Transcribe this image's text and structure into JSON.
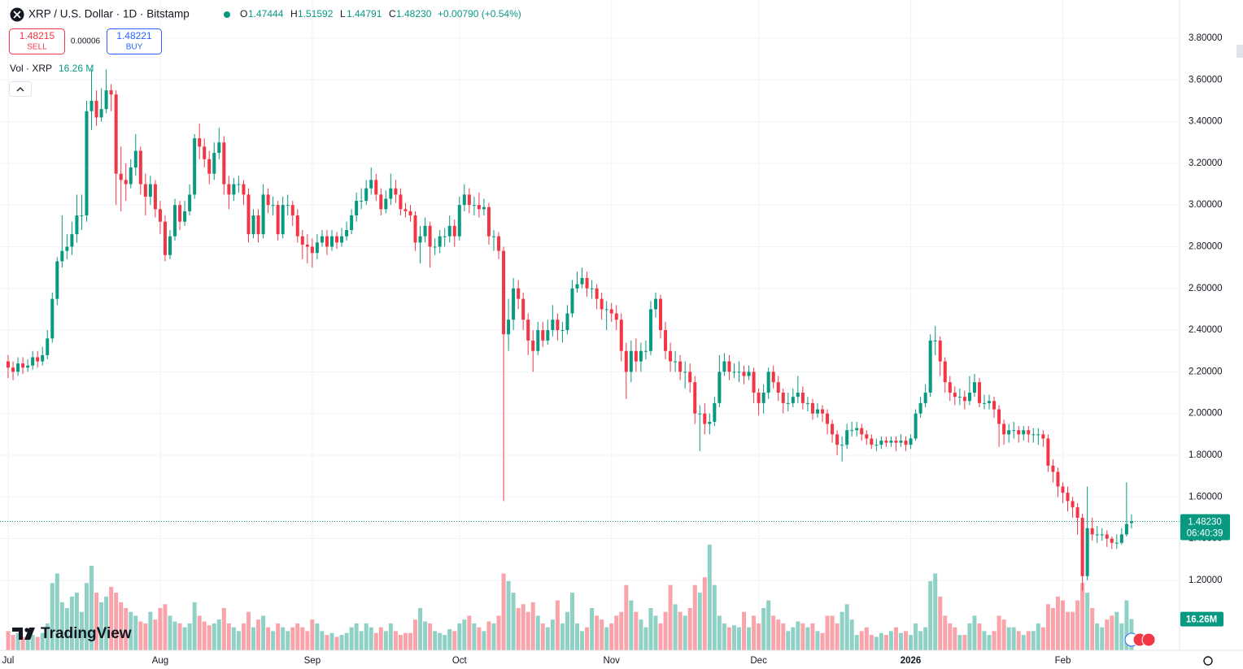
{
  "header": {
    "symbol": "XRP / U.S. Dollar · 1D · Bitstamp",
    "o": "O",
    "open": "1.47444",
    "h": "H",
    "high": "1.51592",
    "l": "L",
    "low": "1.44791",
    "c": "C",
    "close": "1.48230",
    "change": "+0.00790 (+0.54%)",
    "sell_price": "1.48215",
    "sell": "SELL",
    "spread": "0.00006",
    "buy_price": "1.48221",
    "buy": "BUY",
    "vol_title": "Vol · XRP",
    "vol_value": "16.26 M",
    "brand": "TradingView"
  },
  "chart_data": {
    "type": "candlestick",
    "open": [
      2.25,
      2.22,
      2.2,
      2.24,
      2.22,
      2.23,
      2.27,
      2.25,
      2.28,
      2.36,
      2.55,
      2.73,
      2.78,
      2.8,
      2.86,
      2.95,
      2.95,
      3.45,
      3.5,
      3.42,
      3.46,
      3.55,
      3.53,
      3.15,
      3.12,
      3.1,
      3.18,
      3.26,
      3.1,
      3.04,
      3.1,
      2.98,
      2.92,
      2.76,
      2.85,
      3.0,
      2.92,
      2.97,
      3.05,
      3.32,
      3.28,
      3.22,
      3.15,
      3.25,
      3.3,
      3.1,
      3.05,
      3.1,
      3.1,
      3.05,
      2.86,
      2.95,
      2.86,
      3.05,
      3.0,
      3.0,
      2.86,
      3.0,
      3.0,
      2.95,
      2.85,
      2.81,
      2.8,
      2.77,
      2.82,
      2.85,
      2.8,
      2.85,
      2.82,
      2.85,
      2.88,
      2.95,
      3.02,
      3.02,
      3.08,
      3.12,
      3.05,
      2.98,
      3.03,
      3.08,
      3.05,
      2.98,
      2.97,
      2.95,
      2.82,
      2.85,
      2.9,
      2.8,
      2.8,
      2.85,
      2.85,
      2.9,
      2.85,
      3.0,
      3.05,
      3.0,
      3.0,
      2.98,
      2.99,
      2.85,
      2.85,
      2.78,
      2.38,
      2.45,
      2.6,
      2.55,
      2.45,
      2.35,
      2.3,
      2.4,
      2.35,
      2.4,
      2.45,
      2.4,
      2.4,
      2.48,
      2.6,
      2.62,
      2.65,
      2.6,
      2.6,
      2.55,
      2.5,
      2.5,
      2.48,
      2.45,
      2.3,
      2.2,
      2.3,
      2.25,
      2.3,
      2.3,
      2.5,
      2.55,
      2.4,
      2.3,
      2.25,
      2.25,
      2.2,
      2.2,
      2.15,
      2.0,
      2.0,
      1.95,
      1.96,
      2.05,
      2.2,
      2.25,
      2.2,
      2.2,
      2.2,
      2.18,
      2.2,
      2.1,
      2.05,
      2.1,
      2.2,
      2.15,
      2.1,
      2.05,
      2.05,
      2.08,
      2.1,
      2.05,
      2.05,
      2.0,
      2.02,
      2.0,
      1.95,
      1.9,
      1.85,
      1.85,
      1.92,
      1.92,
      1.93,
      1.9,
      1.88,
      1.85,
      1.85,
      1.87,
      1.86,
      1.87,
      1.86,
      1.87,
      1.85,
      1.88,
      2.0,
      2.05,
      2.1,
      2.35,
      2.35,
      2.25,
      2.15,
      2.1,
      2.08,
      2.08,
      2.06,
      2.1,
      2.15,
      2.05,
      2.05,
      2.06,
      2.02,
      1.95,
      1.9,
      1.92,
      1.92,
      1.9,
      1.92,
      1.9,
      1.9,
      1.9,
      1.88,
      1.75,
      1.72,
      1.65,
      1.62,
      1.58,
      1.55,
      1.5,
      1.22,
      1.45,
      1.42,
      1.42,
      1.42,
      1.4,
      1.38,
      1.38,
      1.42,
      1.47444
    ],
    "high": [
      2.28,
      2.25,
      2.27,
      2.27,
      2.26,
      2.3,
      2.3,
      2.32,
      2.4,
      2.58,
      2.75,
      2.95,
      2.86,
      2.92,
      3.05,
      3.05,
      3.5,
      3.65,
      3.55,
      3.56,
      3.65,
      3.58,
      3.55,
      3.28,
      3.2,
      3.22,
      3.34,
      3.28,
      3.15,
      3.14,
      3.12,
      3.02,
      2.95,
      2.88,
      3.03,
      3.02,
      3.02,
      3.1,
      3.34,
      3.39,
      3.32,
      3.26,
      3.3,
      3.37,
      3.33,
      3.14,
      3.13,
      3.14,
      3.12,
      3.08,
      2.98,
      2.98,
      3.1,
      3.08,
      3.04,
      3.02,
      3.04,
      3.05,
      3.02,
      2.98,
      2.88,
      2.86,
      2.84,
      2.86,
      2.88,
      2.88,
      2.88,
      2.87,
      2.89,
      2.92,
      2.98,
      3.06,
      3.08,
      3.12,
      3.18,
      3.15,
      3.08,
      3.07,
      3.15,
      3.12,
      3.08,
      3.01,
      3.0,
      2.97,
      2.9,
      2.94,
      2.92,
      2.84,
      2.88,
      2.89,
      2.95,
      2.93,
      3.04,
      3.1,
      3.08,
      3.04,
      3.06,
      3.03,
      3.01,
      2.88,
      2.87,
      2.8,
      2.55,
      2.65,
      2.64,
      2.58,
      2.48,
      2.4,
      2.44,
      2.44,
      2.45,
      2.52,
      2.48,
      2.44,
      2.52,
      2.64,
      2.68,
      2.7,
      2.68,
      2.64,
      2.62,
      2.58,
      2.54,
      2.53,
      2.52,
      2.48,
      2.34,
      2.35,
      2.36,
      2.34,
      2.35,
      2.54,
      2.58,
      2.57,
      2.44,
      2.34,
      2.3,
      2.28,
      2.25,
      2.24,
      2.18,
      2.04,
      2.05,
      2.0,
      2.08,
      2.28,
      2.29,
      2.28,
      2.24,
      2.25,
      2.23,
      2.23,
      2.22,
      2.12,
      2.14,
      2.22,
      2.23,
      2.18,
      2.12,
      2.1,
      2.12,
      2.18,
      2.13,
      2.08,
      2.07,
      2.05,
      2.04,
      2.02,
      1.97,
      1.92,
      1.89,
      1.95,
      1.96,
      1.96,
      1.95,
      1.92,
      1.9,
      1.88,
      1.89,
      1.89,
      1.89,
      1.89,
      1.9,
      1.89,
      1.9,
      2.02,
      2.08,
      2.14,
      2.38,
      2.42,
      2.37,
      2.27,
      2.18,
      2.13,
      2.12,
      2.11,
      2.18,
      2.19,
      2.17,
      2.09,
      2.09,
      2.08,
      2.04,
      1.97,
      1.95,
      1.96,
      1.94,
      1.94,
      1.94,
      1.93,
      1.93,
      1.92,
      1.9,
      1.78,
      1.74,
      1.67,
      1.65,
      1.6,
      1.57,
      1.52,
      1.65,
      1.5,
      1.46,
      1.45,
      1.44,
      1.41,
      1.42,
      1.45,
      1.67,
      1.51592
    ],
    "low": [
      2.17,
      2.16,
      2.18,
      2.19,
      2.2,
      2.21,
      2.22,
      2.23,
      2.26,
      2.34,
      2.52,
      2.7,
      2.74,
      2.76,
      2.82,
      2.88,
      2.92,
      3.36,
      3.38,
      3.4,
      3.44,
      3.45,
      3.0,
      2.97,
      3.02,
      3.08,
      3.14,
      3.05,
      2.95,
      3.0,
      2.94,
      2.86,
      2.73,
      2.74,
      2.83,
      2.88,
      2.9,
      2.95,
      3.03,
      3.22,
      3.18,
      3.1,
      3.12,
      3.22,
      3.05,
      2.98,
      3.02,
      3.06,
      3.0,
      2.82,
      2.84,
      2.82,
      2.84,
      2.96,
      2.95,
      2.83,
      2.84,
      2.95,
      2.9,
      2.82,
      2.74,
      2.72,
      2.7,
      2.74,
      2.8,
      2.76,
      2.78,
      2.79,
      2.8,
      2.83,
      2.86,
      2.92,
      2.98,
      3.0,
      3.05,
      3.02,
      2.95,
      2.96,
      3.0,
      3.01,
      2.95,
      2.94,
      2.92,
      2.78,
      2.72,
      2.82,
      2.7,
      2.76,
      2.77,
      2.8,
      2.82,
      2.8,
      2.83,
      2.97,
      2.96,
      2.95,
      2.94,
      2.95,
      2.81,
      2.78,
      2.74,
      1.58,
      2.3,
      2.4,
      2.5,
      2.4,
      2.28,
      2.2,
      2.28,
      2.32,
      2.33,
      2.37,
      2.35,
      2.34,
      2.38,
      2.46,
      2.58,
      2.6,
      2.56,
      2.55,
      2.5,
      2.45,
      2.4,
      2.44,
      2.4,
      2.25,
      2.07,
      2.15,
      2.2,
      2.2,
      2.26,
      2.28,
      2.46,
      2.36,
      2.26,
      2.2,
      2.2,
      2.16,
      2.12,
      2.1,
      1.95,
      1.82,
      1.9,
      1.9,
      1.94,
      2.03,
      2.18,
      2.16,
      2.17,
      2.15,
      2.14,
      2.16,
      2.05,
      1.99,
      2.0,
      2.07,
      2.12,
      2.06,
      2.0,
      2.01,
      2.03,
      2.05,
      2.02,
      2.01,
      1.97,
      1.98,
      1.96,
      1.9,
      1.86,
      1.8,
      1.77,
      1.83,
      1.89,
      1.89,
      1.87,
      1.85,
      1.83,
      1.82,
      1.83,
      1.84,
      1.84,
      1.82,
      1.84,
      1.82,
      1.83,
      1.87,
      1.98,
      2.03,
      2.08,
      2.28,
      2.18,
      2.1,
      2.06,
      2.04,
      2.04,
      2.02,
      2.04,
      2.08,
      2.03,
      2.02,
      2.02,
      1.98,
      1.84,
      1.85,
      1.86,
      1.88,
      1.86,
      1.87,
      1.86,
      1.86,
      1.85,
      1.84,
      1.72,
      1.67,
      1.6,
      1.57,
      1.53,
      1.5,
      1.42,
      1.15,
      1.2,
      1.39,
      1.38,
      1.39,
      1.36,
      1.35,
      1.35,
      1.37,
      1.41,
      1.44791
    ],
    "close": [
      2.22,
      2.2,
      2.24,
      2.22,
      2.23,
      2.27,
      2.25,
      2.28,
      2.36,
      2.55,
      2.73,
      2.78,
      2.8,
      2.86,
      2.95,
      2.95,
      3.45,
      3.5,
      3.42,
      3.46,
      3.55,
      3.53,
      3.15,
      3.12,
      3.1,
      3.18,
      3.26,
      3.1,
      3.04,
      3.1,
      2.98,
      2.92,
      2.76,
      2.85,
      3.0,
      2.92,
      2.97,
      3.05,
      3.32,
      3.28,
      3.22,
      3.15,
      3.25,
      3.3,
      3.1,
      3.05,
      3.1,
      3.1,
      3.05,
      2.86,
      2.95,
      2.86,
      3.05,
      3.0,
      3.0,
      2.86,
      3.0,
      3.0,
      2.95,
      2.85,
      2.81,
      2.8,
      2.77,
      2.82,
      2.85,
      2.8,
      2.85,
      2.82,
      2.85,
      2.88,
      2.95,
      3.02,
      3.02,
      3.08,
      3.12,
      3.05,
      2.98,
      3.03,
      3.08,
      3.05,
      2.98,
      2.97,
      2.95,
      2.82,
      2.85,
      2.9,
      2.8,
      2.8,
      2.85,
      2.85,
      2.9,
      2.85,
      3.0,
      3.05,
      3.0,
      3.0,
      2.98,
      2.99,
      2.85,
      2.85,
      2.78,
      2.38,
      2.45,
      2.6,
      2.55,
      2.45,
      2.35,
      2.3,
      2.4,
      2.35,
      2.4,
      2.45,
      2.4,
      2.4,
      2.48,
      2.6,
      2.62,
      2.65,
      2.6,
      2.6,
      2.55,
      2.5,
      2.5,
      2.48,
      2.45,
      2.3,
      2.2,
      2.3,
      2.25,
      2.3,
      2.3,
      2.5,
      2.55,
      2.4,
      2.3,
      2.25,
      2.25,
      2.2,
      2.2,
      2.15,
      2.0,
      2.0,
      1.95,
      1.96,
      2.05,
      2.2,
      2.25,
      2.2,
      2.2,
      2.2,
      2.18,
      2.2,
      2.1,
      2.05,
      2.1,
      2.2,
      2.15,
      2.1,
      2.05,
      2.05,
      2.08,
      2.1,
      2.05,
      2.05,
      2.0,
      2.02,
      2.0,
      1.95,
      1.9,
      1.85,
      1.85,
      1.92,
      1.92,
      1.93,
      1.9,
      1.88,
      1.85,
      1.85,
      1.87,
      1.86,
      1.87,
      1.86,
      1.87,
      1.85,
      1.88,
      2.0,
      2.05,
      2.1,
      2.35,
      2.35,
      2.25,
      2.15,
      2.1,
      2.08,
      2.08,
      2.06,
      2.1,
      2.15,
      2.05,
      2.05,
      2.06,
      2.02,
      1.95,
      1.9,
      1.92,
      1.92,
      1.9,
      1.92,
      1.9,
      1.9,
      1.9,
      1.88,
      1.75,
      1.72,
      1.65,
      1.62,
      1.58,
      1.55,
      1.5,
      1.22,
      1.45,
      1.42,
      1.42,
      1.42,
      1.4,
      1.38,
      1.38,
      1.42,
      1.47,
      1.4823
    ],
    "volume": [
      10,
      8,
      9,
      7,
      6,
      8,
      7,
      9,
      14,
      35,
      40,
      25,
      22,
      28,
      30,
      20,
      35,
      44,
      30,
      25,
      28,
      33,
      30,
      25,
      22,
      20,
      18,
      15,
      14,
      20,
      16,
      22,
      24,
      18,
      15,
      14,
      12,
      14,
      25,
      18,
      15,
      13,
      14,
      16,
      22,
      14,
      12,
      10,
      14,
      20,
      12,
      16,
      18,
      12,
      10,
      14,
      12,
      10,
      12,
      14,
      12,
      10,
      16,
      14,
      10,
      8,
      9,
      7,
      8,
      9,
      12,
      14,
      10,
      14,
      12,
      9,
      12,
      10,
      14,
      10,
      8,
      9,
      9,
      16,
      22,
      15,
      14,
      10,
      9,
      8,
      11,
      10,
      14,
      16,
      18,
      14,
      12,
      10,
      15,
      14,
      18,
      40,
      36,
      30,
      22,
      24,
      20,
      25,
      18,
      14,
      12,
      16,
      26,
      14,
      20,
      30,
      14,
      10,
      12,
      22,
      18,
      16,
      12,
      14,
      18,
      20,
      34,
      26,
      20,
      16,
      12,
      22,
      18,
      14,
      20,
      34,
      24,
      20,
      18,
      22,
      34,
      30,
      38,
      55,
      34,
      18,
      14,
      12,
      13,
      12,
      20,
      12,
      18,
      14,
      22,
      26,
      18,
      16,
      14,
      10,
      12,
      15,
      14,
      12,
      14,
      10,
      9,
      18,
      18,
      14,
      20,
      24,
      16,
      8,
      10,
      12,
      8,
      7,
      9,
      8,
      10,
      12,
      9,
      10,
      8,
      14,
      10,
      12,
      36,
      40,
      28,
      18,
      14,
      12,
      8,
      8,
      14,
      18,
      14,
      10,
      8,
      10,
      18,
      16,
      12,
      12,
      10,
      8,
      10,
      10,
      14,
      12,
      24,
      22,
      28,
      26,
      20,
      20,
      26,
      35,
      30,
      22,
      14,
      12,
      16,
      18,
      20,
      14,
      26,
      16.26
    ],
    "xlim": [
      -1.66,
      238.8
    ],
    "xticks": [
      {
        "value": 0,
        "label": "Jul"
      },
      {
        "value": 31,
        "label": "Aug"
      },
      {
        "value": 62,
        "label": "Sep"
      },
      {
        "value": 92,
        "label": "Oct"
      },
      {
        "value": 123,
        "label": "Nov"
      },
      {
        "value": 153,
        "label": "Dec"
      },
      {
        "value": 184,
        "label": "2026"
      },
      {
        "value": 215,
        "label": "Feb"
      }
    ],
    "ylim": [
      0.8643,
      3.9832
    ],
    "yticks": [
      {
        "value": 3.8,
        "label": "3.80000"
      },
      {
        "value": 3.6,
        "label": "3.60000"
      },
      {
        "value": 3.4,
        "label": "3.40000"
      },
      {
        "value": 3.2,
        "label": "3.20000"
      },
      {
        "value": 3.0,
        "label": "3.00000"
      },
      {
        "value": 2.8,
        "label": "2.80000"
      },
      {
        "value": 2.6,
        "label": "2.60000"
      },
      {
        "value": 2.4,
        "label": "2.40000"
      },
      {
        "value": 2.2,
        "label": "2.20000"
      },
      {
        "value": 2.0,
        "label": "2.00000"
      },
      {
        "value": 1.8,
        "label": "1.80000"
      },
      {
        "value": 1.6,
        "label": "1.60000"
      },
      {
        "value": 1.4,
        "label": "1.40000"
      },
      {
        "value": 1.2,
        "label": "1.20000"
      }
    ],
    "grid": true,
    "up_color": "#089981",
    "down_color": "#f23645",
    "last_price_label": "1.48230",
    "countdown": "06:40:39",
    "volume_label": "16.26M"
  }
}
